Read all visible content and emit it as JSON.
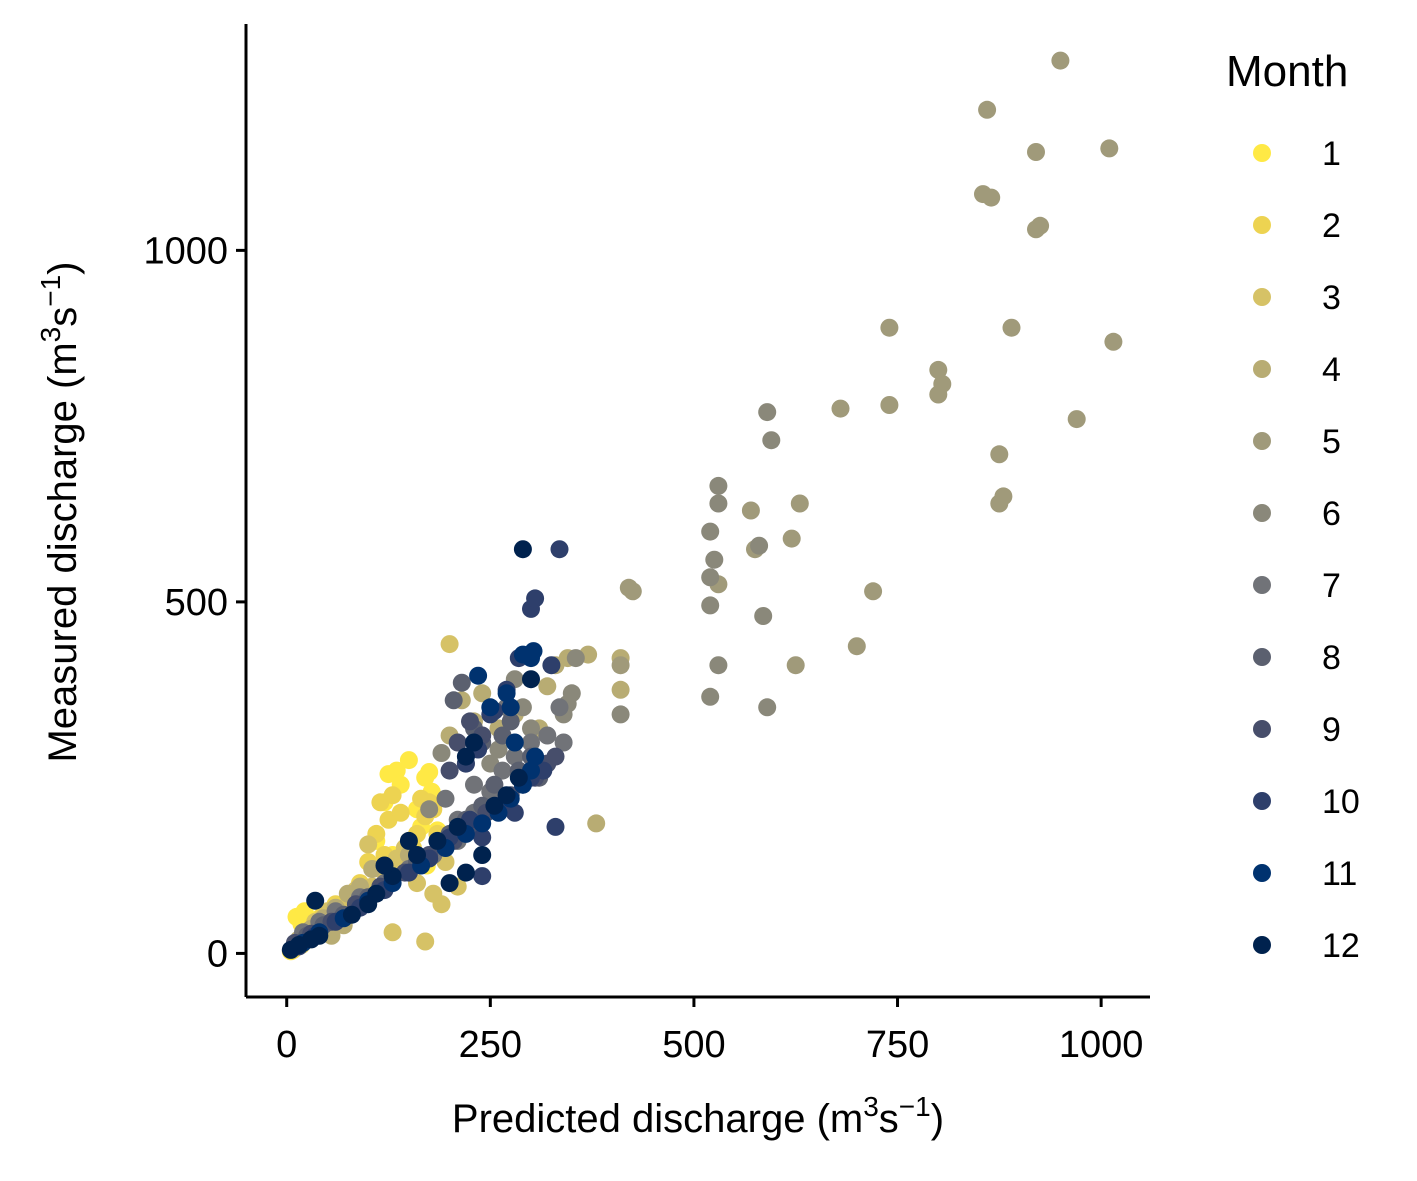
{
  "chart_data": {
    "type": "scatter",
    "title": "",
    "xlabel": {
      "main": "Predicted discharge (m",
      "sup1": "3",
      "mid": "s",
      "sup2": "−1",
      "end": ")"
    },
    "ylabel": {
      "main": "Measured discharge (m",
      "sup1": "3",
      "mid": "s",
      "sup2": "−1",
      "end": ")"
    },
    "xlim": [
      -50,
      1060
    ],
    "ylim": [
      -62,
      1322
    ],
    "x_ticks": [
      0,
      250,
      500,
      750,
      1000
    ],
    "x_tick_labels": [
      "0",
      "250",
      "500",
      "750",
      "1000"
    ],
    "y_ticks": [
      0,
      500,
      1000
    ],
    "y_tick_labels": [
      "0",
      "500",
      "1000"
    ],
    "grid": false,
    "legend": {
      "title": "Month",
      "placement": "right",
      "entries": [
        "1",
        "2",
        "3",
        "4",
        "5",
        "6",
        "7",
        "8",
        "9",
        "10",
        "11",
        "12"
      ]
    },
    "colors": {
      "1": "#FFE945",
      "2": "#EDD351",
      "3": "#D6C266",
      "4": "#B8AC73",
      "5": "#A09A7A",
      "6": "#8A887A",
      "7": "#717378",
      "8": "#5B606F",
      "9": "#474E6B",
      "10": "#2E3F6B",
      "11": "#00326F",
      "12": "#00224E"
    },
    "series": [
      {
        "month": 1,
        "points": [
          [
            5,
            3
          ],
          [
            10,
            8
          ],
          [
            15,
            12
          ],
          [
            20,
            18
          ],
          [
            25,
            35
          ],
          [
            12,
            52
          ],
          [
            18,
            42
          ],
          [
            30,
            24
          ],
          [
            40,
            50
          ],
          [
            22,
            60
          ],
          [
            125,
            255
          ],
          [
            135,
            260
          ],
          [
            140,
            240
          ],
          [
            150,
            275
          ],
          [
            170,
            250
          ],
          [
            175,
            258
          ],
          [
            178,
            230
          ],
          [
            120,
            215
          ],
          [
            160,
            205
          ],
          [
            165,
            180
          ],
          [
            168,
            135
          ],
          [
            172,
            125
          ],
          [
            130,
            140
          ],
          [
            110,
            160
          ],
          [
            185,
            175
          ]
        ]
      },
      {
        "month": 2,
        "points": [
          [
            8,
            5
          ],
          [
            18,
            12
          ],
          [
            28,
            20
          ],
          [
            35,
            32
          ],
          [
            45,
            55
          ],
          [
            55,
            40
          ],
          [
            60,
            70
          ],
          [
            110,
            170
          ],
          [
            115,
            215
          ],
          [
            125,
            190
          ],
          [
            130,
            225
          ],
          [
            140,
            200
          ],
          [
            150,
            160
          ],
          [
            155,
            150
          ],
          [
            160,
            170
          ],
          [
            165,
            220
          ],
          [
            170,
            195
          ],
          [
            175,
            215
          ],
          [
            180,
            205
          ],
          [
            185,
            170
          ],
          [
            140,
            120
          ],
          [
            120,
            140
          ],
          [
            100,
            130
          ],
          [
            90,
            100
          ]
        ]
      },
      {
        "month": 3,
        "points": [
          [
            10,
            10
          ],
          [
            20,
            25
          ],
          [
            35,
            45
          ],
          [
            50,
            60
          ],
          [
            65,
            50
          ],
          [
            75,
            70
          ],
          [
            85,
            90
          ],
          [
            95,
            80
          ],
          [
            105,
            95
          ],
          [
            115,
            120
          ],
          [
            125,
            110
          ],
          [
            135,
            135
          ],
          [
            145,
            150
          ],
          [
            100,
            155
          ],
          [
            130,
            30
          ],
          [
            170,
            17
          ],
          [
            200,
            440
          ],
          [
            180,
            85
          ],
          [
            190,
            70
          ],
          [
            210,
            95
          ],
          [
            195,
            130
          ],
          [
            160,
            100
          ]
        ]
      },
      {
        "month": 4,
        "points": [
          [
            15,
            20
          ],
          [
            30,
            35
          ],
          [
            45,
            50
          ],
          [
            60,
            65
          ],
          [
            75,
            85
          ],
          [
            90,
            95
          ],
          [
            105,
            120
          ],
          [
            150,
            140
          ],
          [
            215,
            360
          ],
          [
            230,
            330
          ],
          [
            240,
            370
          ],
          [
            260,
            320
          ],
          [
            280,
            340
          ],
          [
            310,
            320
          ],
          [
            320,
            380
          ],
          [
            330,
            410
          ],
          [
            345,
            420
          ],
          [
            370,
            425
          ],
          [
            380,
            185
          ],
          [
            410,
            420
          ],
          [
            410,
            375
          ],
          [
            200,
            310
          ],
          [
            70,
            40
          ],
          [
            55,
            25
          ]
        ]
      },
      {
        "month": 5,
        "points": [
          [
            410,
            410
          ],
          [
            420,
            520
          ],
          [
            425,
            515
          ],
          [
            530,
            525
          ],
          [
            570,
            630
          ],
          [
            575,
            575
          ],
          [
            620,
            590
          ],
          [
            630,
            640
          ],
          [
            680,
            775
          ],
          [
            700,
            437
          ],
          [
            720,
            515
          ],
          [
            740,
            780
          ],
          [
            740,
            890
          ],
          [
            800,
            795
          ],
          [
            800,
            830
          ],
          [
            805,
            810
          ],
          [
            855,
            1080
          ],
          [
            860,
            1200
          ],
          [
            865,
            1075
          ],
          [
            875,
            640
          ],
          [
            875,
            710
          ],
          [
            880,
            650
          ],
          [
            890,
            890
          ],
          [
            920,
            1030
          ],
          [
            925,
            1035
          ],
          [
            920,
            1140
          ],
          [
            950,
            1270
          ],
          [
            970,
            760
          ],
          [
            1010,
            1145
          ],
          [
            1015,
            870
          ],
          [
            625,
            410
          ]
        ]
      },
      {
        "month": 6,
        "points": [
          [
            410,
            340
          ],
          [
            520,
            365
          ],
          [
            520,
            495
          ],
          [
            520,
            535
          ],
          [
            525,
            560
          ],
          [
            530,
            410
          ],
          [
            530,
            640
          ],
          [
            530,
            665
          ],
          [
            580,
            580
          ],
          [
            585,
            480
          ],
          [
            590,
            350
          ],
          [
            590,
            770
          ],
          [
            595,
            730
          ],
          [
            520,
            600
          ],
          [
            340,
            340
          ],
          [
            345,
            355
          ],
          [
            350,
            370
          ],
          [
            355,
            420
          ],
          [
            250,
            270
          ],
          [
            260,
            290
          ],
          [
            280,
            390
          ],
          [
            290,
            350
          ],
          [
            300,
            320
          ],
          [
            190,
            285
          ],
          [
            175,
            205
          ]
        ]
      },
      {
        "month": 7,
        "points": [
          [
            20,
            30
          ],
          [
            40,
            45
          ],
          [
            60,
            60
          ],
          [
            90,
            80
          ],
          [
            120,
            100
          ],
          [
            150,
            120
          ],
          [
            180,
            140
          ],
          [
            210,
            160
          ],
          [
            230,
            200
          ],
          [
            250,
            230
          ],
          [
            265,
            260
          ],
          [
            280,
            280
          ],
          [
            300,
            300
          ],
          [
            320,
            310
          ],
          [
            335,
            350
          ],
          [
            340,
            300
          ],
          [
            270,
            350
          ],
          [
            230,
            240
          ],
          [
            210,
            190
          ],
          [
            195,
            220
          ]
        ]
      },
      {
        "month": 8,
        "points": [
          [
            25,
            25
          ],
          [
            45,
            40
          ],
          [
            70,
            55
          ],
          [
            100,
            80
          ],
          [
            130,
            105
          ],
          [
            160,
            130
          ],
          [
            200,
            170
          ],
          [
            220,
            190
          ],
          [
            240,
            210
          ],
          [
            255,
            240
          ],
          [
            265,
            310
          ],
          [
            275,
            330
          ],
          [
            285,
            260
          ],
          [
            300,
            280
          ],
          [
            310,
            250
          ],
          [
            240,
            300
          ],
          [
            220,
            270
          ],
          [
            205,
            360
          ],
          [
            215,
            385
          ],
          [
            230,
            320
          ]
        ]
      },
      {
        "month": 9,
        "points": [
          [
            10,
            15
          ],
          [
            30,
            28
          ],
          [
            55,
            45
          ],
          [
            85,
            70
          ],
          [
            115,
            95
          ],
          [
            145,
            115
          ],
          [
            175,
            140
          ],
          [
            205,
            160
          ],
          [
            225,
            180
          ],
          [
            245,
            200
          ],
          [
            260,
            210
          ],
          [
            275,
            225
          ],
          [
            290,
            240
          ],
          [
            305,
            250
          ],
          [
            320,
            270
          ],
          [
            330,
            280
          ],
          [
            240,
            310
          ],
          [
            225,
            330
          ],
          [
            210,
            300
          ],
          [
            200,
            260
          ]
        ]
      },
      {
        "month": 10,
        "points": [
          [
            15,
            10
          ],
          [
            35,
            25
          ],
          [
            60,
            45
          ],
          [
            90,
            65
          ],
          [
            120,
            90
          ],
          [
            150,
            115
          ],
          [
            175,
            135
          ],
          [
            200,
            165
          ],
          [
            225,
            190
          ],
          [
            240,
            165
          ],
          [
            265,
            210
          ],
          [
            280,
            200
          ],
          [
            300,
            250
          ],
          [
            315,
            260
          ],
          [
            325,
            410
          ],
          [
            330,
            180
          ],
          [
            335,
            575
          ],
          [
            300,
            490
          ],
          [
            305,
            505
          ],
          [
            250,
            340
          ],
          [
            255,
            345
          ],
          [
            270,
            375
          ],
          [
            285,
            420
          ],
          [
            235,
            290
          ],
          [
            220,
            270
          ],
          [
            240,
            110
          ]
        ]
      },
      {
        "month": 11,
        "points": [
          [
            20,
            15
          ],
          [
            40,
            30
          ],
          [
            70,
            50
          ],
          [
            100,
            75
          ],
          [
            130,
            100
          ],
          [
            165,
            125
          ],
          [
            195,
            150
          ],
          [
            220,
            170
          ],
          [
            240,
            185
          ],
          [
            260,
            200
          ],
          [
            275,
            220
          ],
          [
            290,
            240
          ],
          [
            300,
            260
          ],
          [
            305,
            280
          ],
          [
            300,
            420
          ],
          [
            303,
            430
          ],
          [
            290,
            425
          ],
          [
            270,
            370
          ],
          [
            275,
            350
          ],
          [
            280,
            300
          ],
          [
            250,
            350
          ],
          [
            235,
            395
          ]
        ]
      },
      {
        "month": 12,
        "points": [
          [
            5,
            5
          ],
          [
            15,
            12
          ],
          [
            30,
            20
          ],
          [
            35,
            75
          ],
          [
            40,
            25
          ],
          [
            80,
            55
          ],
          [
            110,
            85
          ],
          [
            130,
            110
          ],
          [
            160,
            140
          ],
          [
            185,
            160
          ],
          [
            200,
            100
          ],
          [
            220,
            115
          ],
          [
            240,
            140
          ],
          [
            255,
            210
          ],
          [
            270,
            225
          ],
          [
            285,
            250
          ],
          [
            290,
            575
          ],
          [
            300,
            390
          ],
          [
            220,
            280
          ],
          [
            230,
            300
          ],
          [
            210,
            180
          ],
          [
            150,
            160
          ],
          [
            120,
            125
          ],
          [
            100,
            70
          ]
        ]
      }
    ]
  }
}
